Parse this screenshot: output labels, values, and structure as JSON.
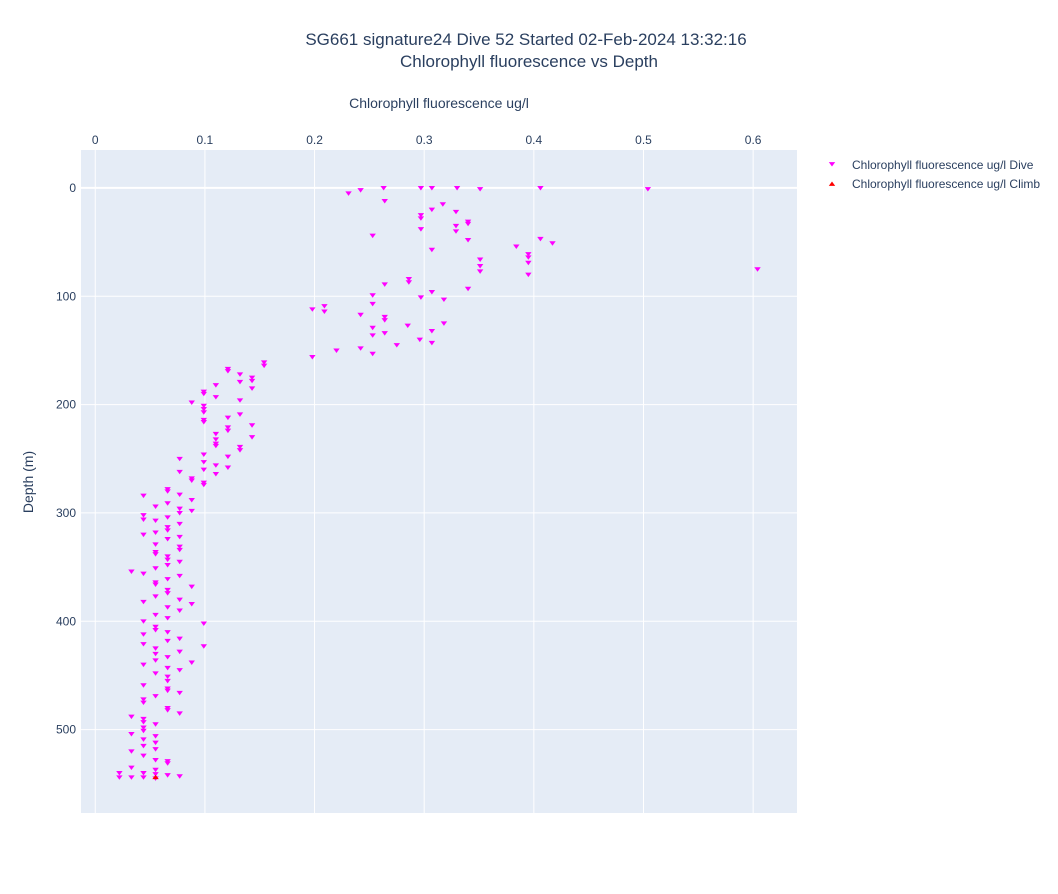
{
  "title": {
    "line1": "SG661 signature24 Dive 52 Started 02-Feb-2024 13:32:16",
    "line2": "Chlorophyll fluorescence vs Depth"
  },
  "colors": {
    "plot_bg": "#e5ecf6",
    "grid": "#ffffff",
    "text": "#2a3f5f",
    "dive": "#ff00ff",
    "climb": "#ff0000"
  },
  "chart_data": {
    "type": "scatter",
    "xlabel": "Chlorophyll fluorescence ug/l",
    "ylabel": "Depth (m)",
    "x_axis_side": "top",
    "y_reversed": true,
    "grid": true,
    "legend_placement": "top-right",
    "xlim": [
      -0.013,
      0.64
    ],
    "ylim": [
      -35,
      577
    ],
    "xticks": [
      "0",
      "0.1",
      "0.2",
      "0.3",
      "0.4",
      "0.5",
      "0.6"
    ],
    "xtick_values": [
      0,
      0.1,
      0.2,
      0.3,
      0.4,
      0.5,
      0.6
    ],
    "yticks": [
      "0",
      "100",
      "200",
      "300",
      "400",
      "500"
    ],
    "ytick_values": [
      0,
      100,
      200,
      300,
      400,
      500
    ],
    "series": [
      {
        "name": "Chlorophyll fluorescence ug/l Dive",
        "marker": "triangle-down",
        "points": [
          [
            0.263,
            0
          ],
          [
            0.297,
            0
          ],
          [
            0.307,
            0
          ],
          [
            0.33,
            0
          ],
          [
            0.351,
            1
          ],
          [
            0.406,
            0
          ],
          [
            0.504,
            1
          ],
          [
            0.242,
            2
          ],
          [
            0.231,
            5
          ],
          [
            0.264,
            12
          ],
          [
            0.317,
            15
          ],
          [
            0.307,
            20
          ],
          [
            0.329,
            22
          ],
          [
            0.297,
            25
          ],
          [
            0.297,
            28
          ],
          [
            0.34,
            31
          ],
          [
            0.34,
            33
          ],
          [
            0.329,
            35
          ],
          [
            0.329,
            40
          ],
          [
            0.297,
            38
          ],
          [
            0.253,
            44
          ],
          [
            0.34,
            48
          ],
          [
            0.406,
            47
          ],
          [
            0.417,
            51
          ],
          [
            0.384,
            54
          ],
          [
            0.307,
            57
          ],
          [
            0.395,
            61
          ],
          [
            0.395,
            64
          ],
          [
            0.351,
            66
          ],
          [
            0.395,
            69
          ],
          [
            0.351,
            72
          ],
          [
            0.351,
            77
          ],
          [
            0.604,
            75
          ],
          [
            0.395,
            80
          ],
          [
            0.286,
            84
          ],
          [
            0.286,
            87
          ],
          [
            0.264,
            89
          ],
          [
            0.34,
            93
          ],
          [
            0.307,
            96
          ],
          [
            0.253,
            99
          ],
          [
            0.297,
            101
          ],
          [
            0.318,
            103
          ],
          [
            0.253,
            107
          ],
          [
            0.209,
            109
          ],
          [
            0.198,
            112
          ],
          [
            0.209,
            114
          ],
          [
            0.242,
            117
          ],
          [
            0.264,
            119
          ],
          [
            0.264,
            122
          ],
          [
            0.318,
            125
          ],
          [
            0.285,
            127
          ],
          [
            0.253,
            129
          ],
          [
            0.307,
            132
          ],
          [
            0.253,
            136
          ],
          [
            0.264,
            134
          ],
          [
            0.296,
            140
          ],
          [
            0.307,
            143
          ],
          [
            0.275,
            145
          ],
          [
            0.242,
            148
          ],
          [
            0.22,
            150
          ],
          [
            0.253,
            153
          ],
          [
            0.198,
            156
          ],
          [
            0.154,
            161
          ],
          [
            0.154,
            164
          ],
          [
            0.121,
            167
          ],
          [
            0.121,
            169
          ],
          [
            0.132,
            172
          ],
          [
            0.143,
            175
          ],
          [
            0.132,
            179
          ],
          [
            0.143,
            178
          ],
          [
            0.11,
            182
          ],
          [
            0.143,
            185
          ],
          [
            0.099,
            188
          ],
          [
            0.099,
            190
          ],
          [
            0.11,
            193
          ],
          [
            0.132,
            196
          ],
          [
            0.088,
            198
          ],
          [
            0.099,
            201
          ],
          [
            0.099,
            204
          ],
          [
            0.099,
            207
          ],
          [
            0.132,
            209
          ],
          [
            0.121,
            212
          ],
          [
            0.099,
            214
          ],
          [
            0.099,
            216
          ],
          [
            0.143,
            219
          ],
          [
            0.121,
            221
          ],
          [
            0.121,
            224
          ],
          [
            0.11,
            227
          ],
          [
            0.143,
            230
          ],
          [
            0.11,
            232
          ],
          [
            0.11,
            236
          ],
          [
            0.132,
            239
          ],
          [
            0.11,
            238
          ],
          [
            0.132,
            242
          ],
          [
            0.099,
            246
          ],
          [
            0.121,
            248
          ],
          [
            0.077,
            250
          ],
          [
            0.099,
            253
          ],
          [
            0.11,
            256
          ],
          [
            0.121,
            258
          ],
          [
            0.099,
            260
          ],
          [
            0.077,
            262
          ],
          [
            0.11,
            264
          ],
          [
            0.088,
            268
          ],
          [
            0.088,
            270
          ],
          [
            0.099,
            272
          ],
          [
            0.099,
            274
          ],
          [
            0.066,
            278
          ],
          [
            0.066,
            280
          ],
          [
            0.077,
            283
          ],
          [
            0.044,
            284
          ],
          [
            0.088,
            288
          ],
          [
            0.066,
            291
          ],
          [
            0.055,
            294
          ],
          [
            0.077,
            296
          ],
          [
            0.088,
            298
          ],
          [
            0.077,
            300
          ],
          [
            0.044,
            302
          ],
          [
            0.066,
            304
          ],
          [
            0.044,
            306
          ],
          [
            0.055,
            307
          ],
          [
            0.077,
            310
          ],
          [
            0.066,
            313
          ],
          [
            0.066,
            316
          ],
          [
            0.055,
            318
          ],
          [
            0.044,
            320
          ],
          [
            0.077,
            322
          ],
          [
            0.066,
            324
          ],
          [
            0.055,
            329
          ],
          [
            0.077,
            331
          ],
          [
            0.077,
            334
          ],
          [
            0.055,
            336
          ],
          [
            0.066,
            340
          ],
          [
            0.055,
            338
          ],
          [
            0.066,
            343
          ],
          [
            0.077,
            345
          ],
          [
            0.066,
            348
          ],
          [
            0.055,
            351
          ],
          [
            0.033,
            354
          ],
          [
            0.044,
            356
          ],
          [
            0.077,
            358
          ],
          [
            0.066,
            361
          ],
          [
            0.055,
            364
          ],
          [
            0.055,
            366
          ],
          [
            0.088,
            368
          ],
          [
            0.066,
            371
          ],
          [
            0.066,
            374
          ],
          [
            0.055,
            377
          ],
          [
            0.077,
            380
          ],
          [
            0.044,
            382
          ],
          [
            0.088,
            384
          ],
          [
            0.066,
            387
          ],
          [
            0.077,
            390
          ],
          [
            0.055,
            394
          ],
          [
            0.066,
            397
          ],
          [
            0.044,
            400
          ],
          [
            0.099,
            402
          ],
          [
            0.055,
            405
          ],
          [
            0.055,
            408
          ],
          [
            0.066,
            410
          ],
          [
            0.044,
            412
          ],
          [
            0.077,
            416
          ],
          [
            0.066,
            418
          ],
          [
            0.044,
            421
          ],
          [
            0.099,
            423
          ],
          [
            0.055,
            425
          ],
          [
            0.077,
            428
          ],
          [
            0.055,
            430
          ],
          [
            0.066,
            433
          ],
          [
            0.055,
            436
          ],
          [
            0.088,
            438
          ],
          [
            0.044,
            440
          ],
          [
            0.066,
            443
          ],
          [
            0.077,
            445
          ],
          [
            0.055,
            448
          ],
          [
            0.066,
            451
          ],
          [
            0.066,
            455
          ],
          [
            0.044,
            459
          ],
          [
            0.066,
            462
          ],
          [
            0.066,
            464
          ],
          [
            0.077,
            466
          ],
          [
            0.055,
            469
          ],
          [
            0.044,
            472
          ],
          [
            0.044,
            475
          ],
          [
            0.066,
            480
          ],
          [
            0.066,
            482
          ],
          [
            0.077,
            485
          ],
          [
            0.033,
            488
          ],
          [
            0.044,
            490
          ],
          [
            0.044,
            493
          ],
          [
            0.055,
            495
          ],
          [
            0.044,
            498
          ],
          [
            0.044,
            501
          ],
          [
            0.033,
            504
          ],
          [
            0.055,
            506
          ],
          [
            0.044,
            509
          ],
          [
            0.055,
            512
          ],
          [
            0.044,
            515
          ],
          [
            0.033,
            520
          ],
          [
            0.055,
            518
          ],
          [
            0.044,
            524
          ],
          [
            0.066,
            529
          ],
          [
            0.055,
            528
          ],
          [
            0.066,
            531
          ],
          [
            0.033,
            535
          ],
          [
            0.055,
            537
          ],
          [
            0.022,
            540
          ],
          [
            0.044,
            540
          ],
          [
            0.055,
            541
          ],
          [
            0.066,
            542
          ],
          [
            0.077,
            543
          ],
          [
            0.022,
            544
          ],
          [
            0.033,
            544
          ],
          [
            0.044,
            544
          ],
          [
            0.055,
            545
          ]
        ]
      },
      {
        "name": "Chlorophyll fluorescence ug/l Climb",
        "marker": "triangle-up",
        "points": [
          [
            0.055,
            544
          ]
        ]
      }
    ]
  }
}
